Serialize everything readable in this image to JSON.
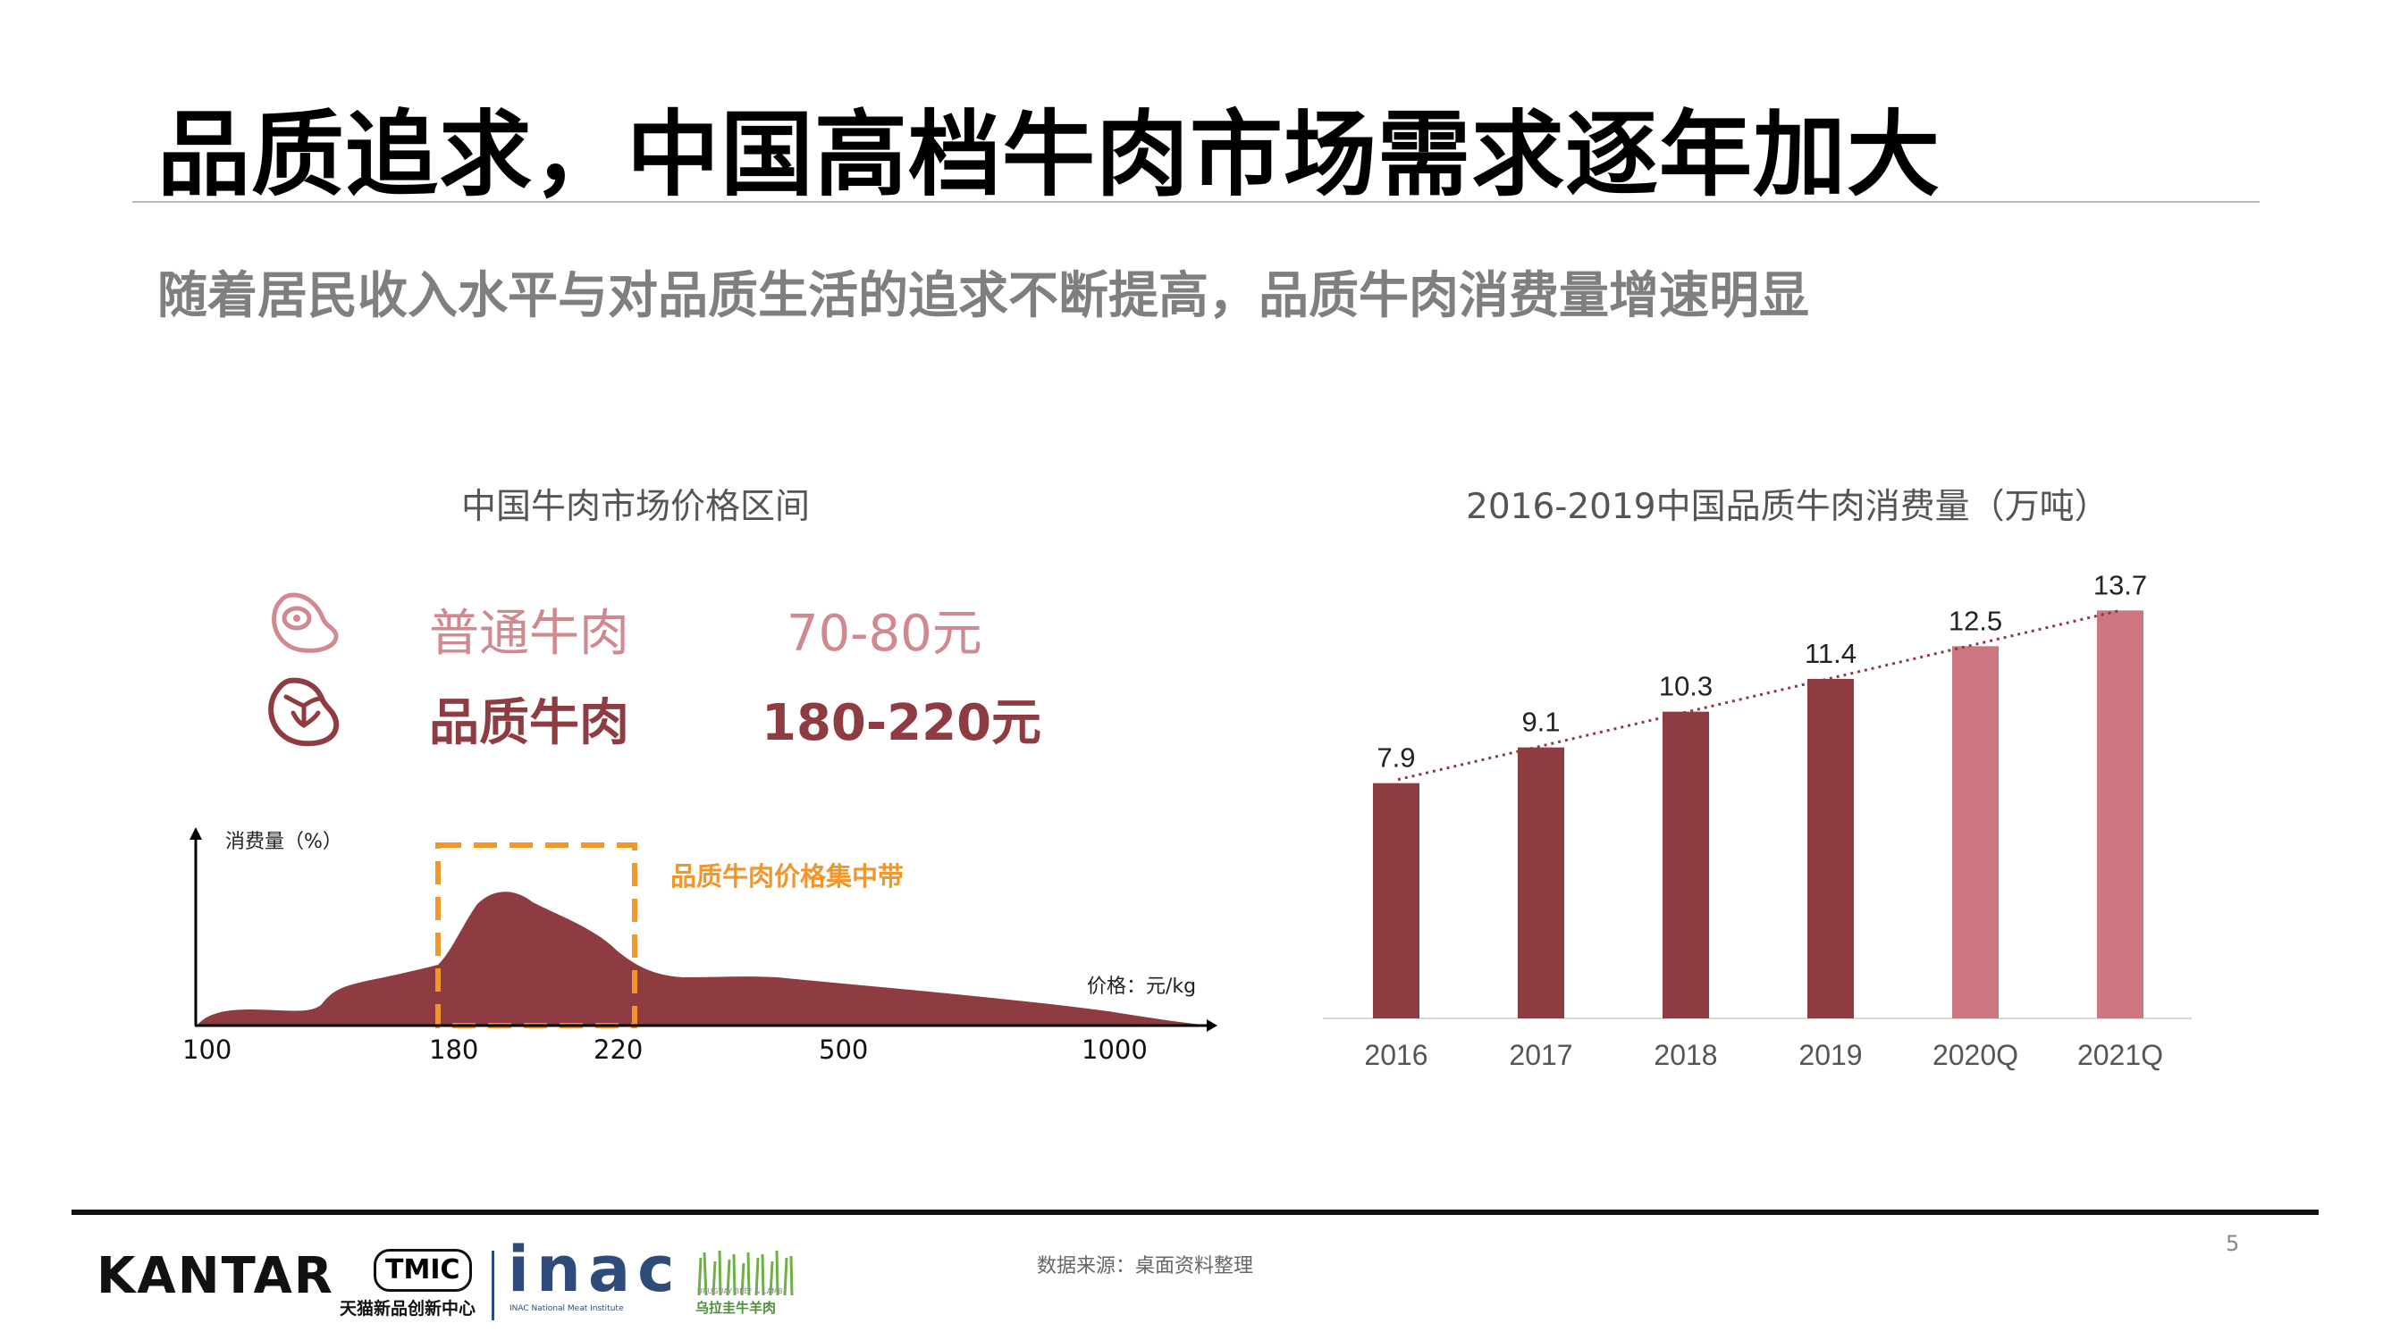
{
  "header": {
    "title": "品质追求，中国高档牛肉市场需求逐年加大",
    "subtitle": "随着居民收入水平与对品质生活的追求不断提高，品质牛肉消费量增速明显"
  },
  "left_panel": {
    "title": "中国牛肉市场价格区间",
    "rows": [
      {
        "name": "普通牛肉",
        "price": "70-80元",
        "icon": "steak-outline-icon"
      },
      {
        "name": "品质牛肉",
        "price": "180-220元",
        "icon": "tbone-steak-icon"
      }
    ]
  },
  "right_panel": {
    "title": "2016-2019中国品质牛肉消费量（万吨）"
  },
  "chart_data": [
    {
      "type": "area",
      "ylabel": "消费量（%）",
      "xlabel": "价格：元/kg",
      "x_ticks": [
        "100",
        "180",
        "220",
        "500",
        "1000"
      ],
      "highlight": {
        "label": "品质牛肉价格集中带",
        "from": "180",
        "to": "220"
      },
      "color": "#8e3b42",
      "highlight_color": "#f0962a"
    },
    {
      "type": "bar",
      "categories": [
        "2016",
        "2017",
        "2018",
        "2019",
        "2020Q",
        "2021Q"
      ],
      "values": [
        7.9,
        9.1,
        10.3,
        11.4,
        12.5,
        13.7
      ],
      "value_labels": [
        "7.9",
        "9.1",
        "10.3",
        "11.4",
        "12.5",
        "13.7"
      ],
      "ylim": [
        0,
        15
      ],
      "colors": [
        "#8e3b42",
        "#8e3b42",
        "#8e3b42",
        "#8e3b42",
        "#cc777f",
        "#cc777f"
      ],
      "trendline": true,
      "trend_color": "#8e3b42"
    }
  ],
  "footer": {
    "source": "数据来源：桌面资料整理",
    "page_number": "5",
    "logos": {
      "kantar": "KANTAR",
      "tmic": "TMIC",
      "tmic_sub": "天猫新品创新中心",
      "inac": "inac",
      "inac_sub": "INAC National Meat Institute",
      "uruguay_small": "URUGUAY BEEF & LAMB",
      "uruguay": "乌拉圭牛羊肉"
    }
  }
}
